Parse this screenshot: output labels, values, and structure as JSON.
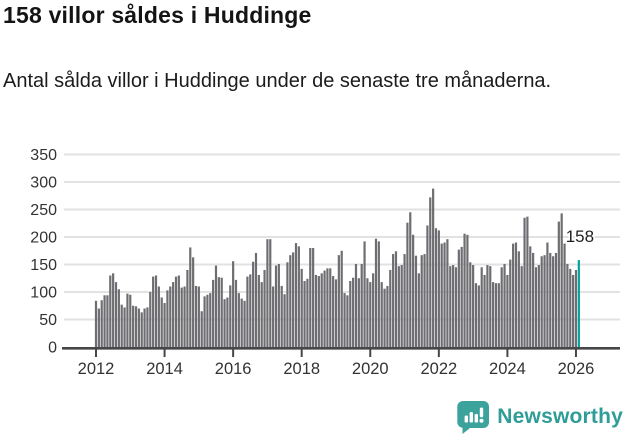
{
  "title": "158 villor såldes i Huddinge",
  "subtitle": "Antal sålda villor i Huddinge under de senaste tre månaderna.",
  "footer": {
    "brand": "Newsworthy",
    "logo_icon": "newsworthy-speech-bubble-bar-chart-icon"
  },
  "colors": {
    "bar": "#6e6e72",
    "highlight": "#00a29d",
    "grid": "#e2e2e2",
    "axis": "#474749",
    "title_text": "#141414",
    "tick_text": "#333333",
    "brand_teal": "#2f9d97"
  },
  "chart_data": {
    "type": "bar",
    "title": "158 villor såldes i Huddinge",
    "subtitle": "Antal sålda villor i Huddinge under de senaste tre månaderna.",
    "xlabel": "",
    "ylabel": "",
    "x_start": "2012-01",
    "x_end": "2026-02",
    "x_freq": "monthly",
    "ylim": [
      0,
      350
    ],
    "yticks": [
      0,
      50,
      100,
      150,
      200,
      250,
      300,
      350
    ],
    "xtick_labels": [
      "2012",
      "2014",
      "2016",
      "2018",
      "2020",
      "2022",
      "2024",
      "2026"
    ],
    "grid": "horizontal",
    "legend": "none",
    "bar_color": "#6e6e72",
    "values": [
      84,
      70,
      85,
      94,
      94,
      130,
      134,
      118,
      105,
      77,
      72,
      97,
      95,
      75,
      74,
      70,
      63,
      70,
      72,
      100,
      128,
      130,
      110,
      90,
      80,
      103,
      110,
      118,
      128,
      130,
      108,
      110,
      140,
      181,
      163,
      111,
      110,
      65,
      92,
      95,
      98,
      122,
      148,
      127,
      126,
      87,
      90,
      112,
      156,
      122,
      98,
      88,
      84,
      128,
      132,
      155,
      171,
      131,
      118,
      140,
      196,
      196,
      110,
      148,
      151,
      111,
      96,
      154,
      167,
      172,
      189,
      183,
      142,
      120,
      124,
      180,
      180,
      131,
      129,
      134,
      139,
      143,
      143,
      129,
      123,
      167,
      175,
      98,
      94,
      120,
      126,
      151,
      125,
      151,
      192,
      125,
      118,
      134,
      197,
      192,
      118,
      106,
      111,
      140,
      169,
      174,
      147,
      149,
      169,
      226,
      245,
      204,
      166,
      134,
      167,
      169,
      221,
      272,
      288,
      216,
      212,
      188,
      190,
      196,
      147,
      149,
      145,
      177,
      182,
      206,
      204,
      154,
      149,
      116,
      112,
      145,
      131,
      149,
      147,
      118,
      116,
      116,
      145,
      151,
      131,
      159,
      188,
      190,
      174,
      147,
      235,
      237,
      183,
      171,
      145,
      149,
      165,
      167,
      190,
      171,
      165,
      171,
      228,
      243,
      188,
      151,
      142,
      131,
      140,
      158
    ],
    "highlight": {
      "index": 169,
      "value": 158,
      "color": "#00a29d",
      "annotation": "158"
    }
  }
}
